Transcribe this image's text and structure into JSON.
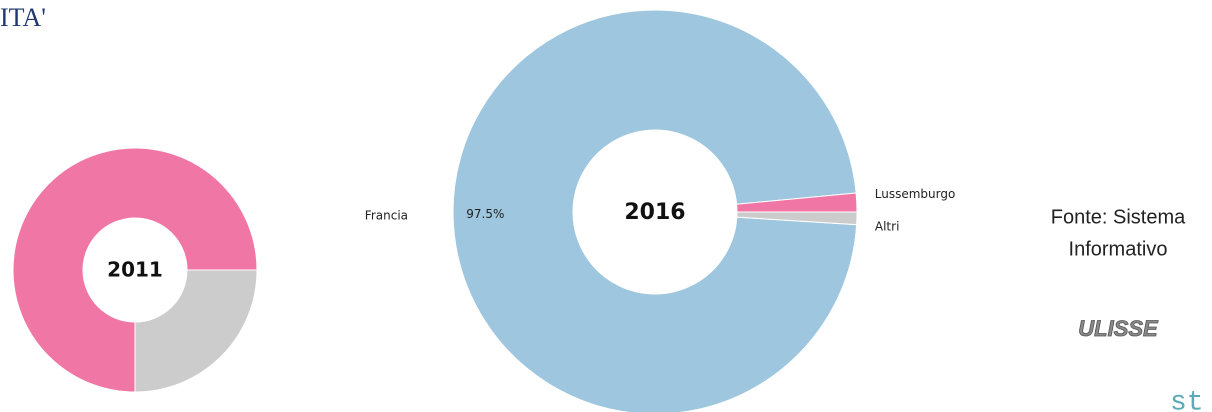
{
  "slide_title": "ITA'",
  "source": {
    "line1": "Fonte: Sistema",
    "line2": "Informativo",
    "logo": "ULISSE"
  },
  "footer_fragment": "st",
  "chart_data": [
    {
      "type": "donut",
      "center_label": "2011",
      "categories": [
        null,
        null
      ],
      "values": [
        75,
        25
      ],
      "colors": [
        "#f076a6",
        "#cccccc"
      ]
    },
    {
      "type": "donut",
      "center_label": "2016",
      "categories": [
        "Francia",
        "Lussemburgo",
        "Altri"
      ],
      "values": [
        97.5,
        1.5,
        1.0
      ],
      "value_labels": [
        "97.5%",
        null,
        null
      ],
      "colors": [
        "#9ec6de",
        "#f076a6",
        "#cccccc"
      ]
    }
  ]
}
